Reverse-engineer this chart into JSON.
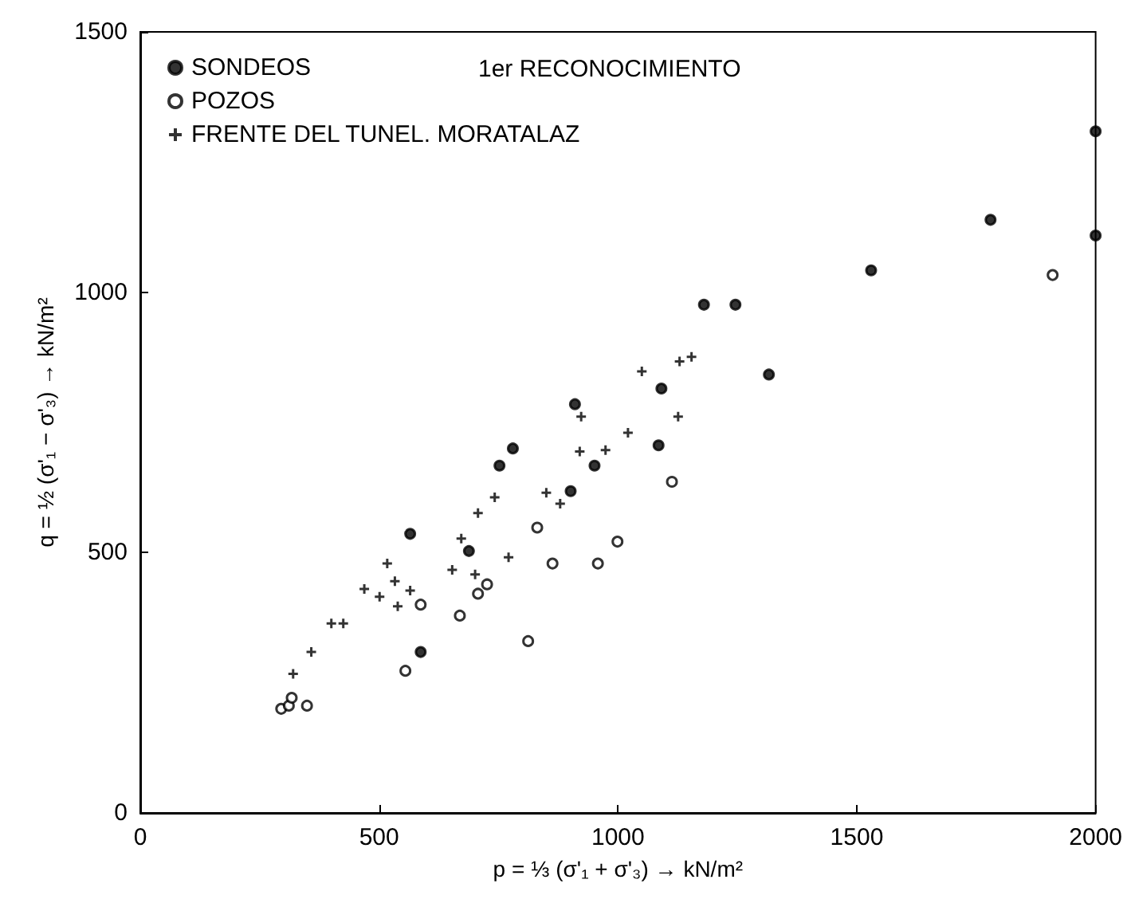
{
  "chart_data": {
    "type": "scatter",
    "xlabel": "p = ⅓ (σ'₁ + σ'₃) → kN/m²",
    "ylabel": "q = ½ (σ'₁ − σ'₃) → kN/m²",
    "annotations": [
      "1er RECONOCIMIENTO"
    ],
    "xlim": [
      0,
      2000
    ],
    "xticks": [
      0,
      500,
      1000,
      1500,
      2000
    ],
    "ylim": [
      0,
      1500
    ],
    "yticks": [
      0,
      500,
      1000,
      1500
    ],
    "grid": false,
    "legend": "top left",
    "series": [
      {
        "name": "SONDEOS",
        "color": "#000000",
        "marker": "circle",
        "x": [
          565,
          587,
          688,
          752,
          780,
          901,
          910,
          951,
          1085,
          1091,
          1180,
          1246,
          1316,
          1530,
          1780,
          2000,
          2000
        ],
        "values": [
          536,
          309,
          503,
          667,
          700,
          618,
          785,
          667,
          706,
          815,
          976,
          976,
          842,
          1042,
          1139,
          1309,
          1109
        ]
      },
      {
        "name": "POZOS",
        "color": "#ffffff",
        "marker": "circle",
        "x": [
          295,
          311,
          317,
          349,
          555,
          587,
          669,
          707,
          726,
          812,
          831,
          863,
          958,
          999,
          1113,
          1910
        ],
        "values": [
          200,
          206,
          221,
          206,
          273,
          400,
          379,
          421,
          439,
          330,
          548,
          479,
          479,
          521,
          636,
          1033
        ]
      },
      {
        "name": "FRENTE DEL TUNEL. MORATALAZ",
        "color": "#000000",
        "marker": "cross",
        "x": [
          320,
          358,
          400,
          425,
          469,
          501,
          517,
          533,
          539,
          565,
          653,
          672,
          701,
          707,
          742,
          771,
          850,
          879,
          920,
          923,
          974,
          1021,
          1050,
          1126,
          1129,
          1154
        ],
        "values": [
          267,
          309,
          364,
          364,
          430,
          415,
          479,
          445,
          397,
          427,
          467,
          527,
          458,
          576,
          606,
          491,
          615,
          594,
          694,
          761,
          697,
          730,
          848,
          761,
          867,
          876
        ]
      }
    ]
  }
}
